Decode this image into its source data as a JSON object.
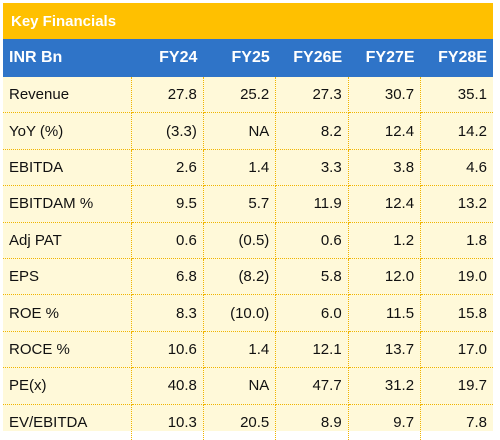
{
  "title": "Key Financials",
  "header": {
    "label": "INR Bn",
    "years": [
      "FY24",
      "FY25",
      "FY26E",
      "FY27E",
      "FY28E"
    ]
  },
  "rows": [
    {
      "label": "Revenue",
      "values": [
        "27.8",
        "25.2",
        "27.3",
        "30.7",
        "35.1"
      ]
    },
    {
      "label": "YoY (%)",
      "values": [
        "(3.3)",
        "NA",
        "8.2",
        "12.4",
        "14.2"
      ]
    },
    {
      "label": "EBITDA",
      "values": [
        "2.6",
        "1.4",
        "3.3",
        "3.8",
        "4.6"
      ]
    },
    {
      "label": "EBITDAM %",
      "values": [
        "9.5",
        "5.7",
        "11.9",
        "12.4",
        "13.2"
      ]
    },
    {
      "label": "Adj PAT",
      "values": [
        "0.6",
        "(0.5)",
        "0.6",
        "1.2",
        "1.8"
      ]
    },
    {
      "label": "EPS",
      "values": [
        "6.8",
        "(8.2)",
        "5.8",
        "12.0",
        "19.0"
      ]
    },
    {
      "label": "ROE %",
      "values": [
        "8.3",
        "(10.0)",
        "6.0",
        "11.5",
        "15.8"
      ]
    },
    {
      "label": "ROCE %",
      "values": [
        "10.6",
        "1.4",
        "12.1",
        "13.7",
        "17.0"
      ]
    },
    {
      "label": "PE(x)",
      "values": [
        "40.8",
        "NA",
        "47.7",
        "31.2",
        "19.7"
      ]
    },
    {
      "label": "EV/EBITDA",
      "values": [
        "10.3",
        "20.5",
        "8.9",
        "9.7",
        "7.8"
      ]
    }
  ],
  "colors": {
    "title_bg": "#ffc000",
    "header_bg": "#2f74c8",
    "body_bg": "#fff9d9",
    "divider": "#f0b400"
  }
}
